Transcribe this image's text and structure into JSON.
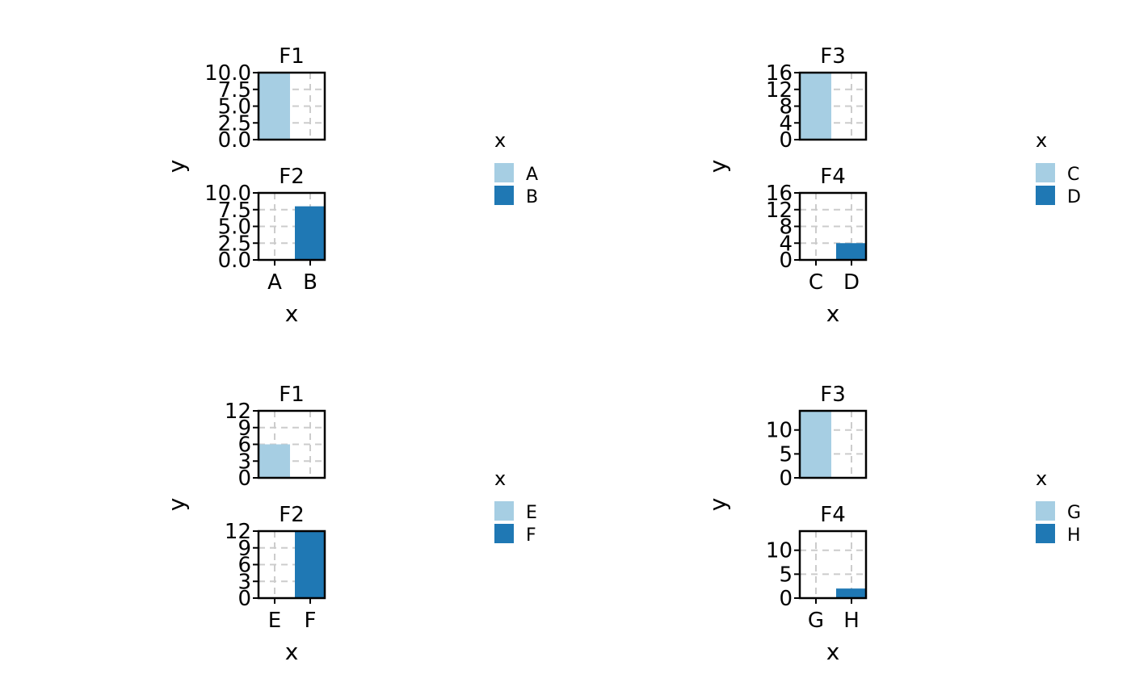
{
  "chart_data": [
    {
      "type": "bar",
      "xlabel": "x",
      "ylabel": "y",
      "legend": {
        "title": "x",
        "placement": "right",
        "entries": [
          {
            "label": "A",
            "color": "#A6CEE3"
          },
          {
            "label": "B",
            "color": "#1F78B4"
          }
        ]
      },
      "grid": true,
      "facets": [
        {
          "title": "F1",
          "categories": [
            "A",
            "B"
          ],
          "values": [
            10,
            0
          ],
          "ylim": [
            0,
            10
          ],
          "yticks": [
            "0.0",
            "2.5",
            "5.0",
            "7.5",
            "10.0"
          ],
          "show_x_ticks": false
        },
        {
          "title": "F2",
          "categories": [
            "A",
            "B"
          ],
          "values": [
            0,
            8
          ],
          "ylim": [
            0,
            10
          ],
          "yticks": [
            "0.0",
            "2.5",
            "5.0",
            "7.5",
            "10.0"
          ],
          "show_x_ticks": true
        }
      ]
    },
    {
      "type": "bar",
      "xlabel": "x",
      "ylabel": "y",
      "legend": {
        "title": "x",
        "placement": "right",
        "entries": [
          {
            "label": "C",
            "color": "#A6CEE3"
          },
          {
            "label": "D",
            "color": "#1F78B4"
          }
        ]
      },
      "grid": true,
      "facets": [
        {
          "title": "F3",
          "categories": [
            "C",
            "D"
          ],
          "values": [
            16,
            0
          ],
          "ylim": [
            0,
            16
          ],
          "yticks": [
            "0",
            "4",
            "8",
            "12",
            "16"
          ],
          "show_x_ticks": false
        },
        {
          "title": "F4",
          "categories": [
            "C",
            "D"
          ],
          "values": [
            0,
            4
          ],
          "ylim": [
            0,
            16
          ],
          "yticks": [
            "0",
            "4",
            "8",
            "12",
            "16"
          ],
          "show_x_ticks": true
        }
      ]
    },
    {
      "type": "bar",
      "xlabel": "x",
      "ylabel": "y",
      "legend": {
        "title": "x",
        "placement": "right",
        "entries": [
          {
            "label": "E",
            "color": "#A6CEE3"
          },
          {
            "label": "F",
            "color": "#1F78B4"
          }
        ]
      },
      "grid": true,
      "facets": [
        {
          "title": "F1",
          "categories": [
            "E",
            "F"
          ],
          "values": [
            6,
            0
          ],
          "ylim": [
            0,
            12
          ],
          "yticks": [
            "0",
            "3",
            "6",
            "9",
            "12"
          ],
          "show_x_ticks": false
        },
        {
          "title": "F2",
          "categories": [
            "E",
            "F"
          ],
          "values": [
            0,
            12
          ],
          "ylim": [
            0,
            12
          ],
          "yticks": [
            "0",
            "3",
            "6",
            "9",
            "12"
          ],
          "show_x_ticks": true
        }
      ]
    },
    {
      "type": "bar",
      "xlabel": "x",
      "ylabel": "y",
      "legend": {
        "title": "x",
        "placement": "right",
        "entries": [
          {
            "label": "G",
            "color": "#A6CEE3"
          },
          {
            "label": "H",
            "color": "#1F78B4"
          }
        ]
      },
      "grid": true,
      "facets": [
        {
          "title": "F3",
          "categories": [
            "G",
            "H"
          ],
          "values": [
            14,
            0
          ],
          "ylim": [
            0,
            14
          ],
          "yticks": [
            "0",
            "5",
            "10"
          ],
          "show_x_ticks": false
        },
        {
          "title": "F4",
          "categories": [
            "G",
            "H"
          ],
          "values": [
            0,
            2
          ],
          "ylim": [
            0,
            14
          ],
          "yticks": [
            "0",
            "5",
            "10"
          ],
          "show_x_ticks": true
        }
      ]
    }
  ]
}
